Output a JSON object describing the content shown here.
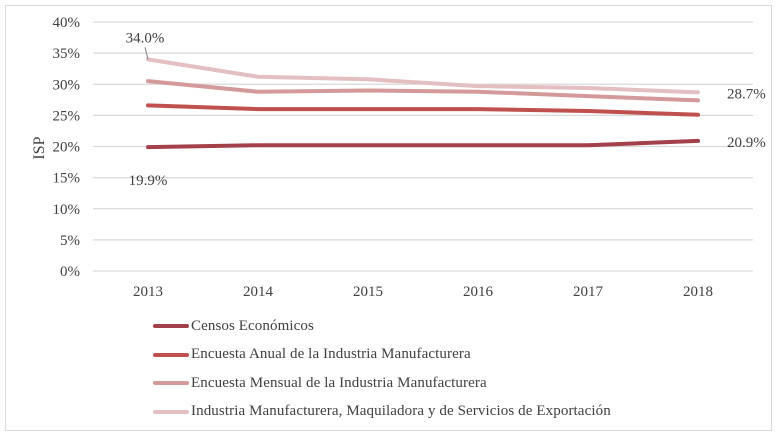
{
  "chart_data": {
    "type": "line",
    "title": "",
    "xlabel": "",
    "ylabel": "ISP",
    "categories": [
      "2013",
      "2014",
      "2015",
      "2016",
      "2017",
      "2018"
    ],
    "ylim": [
      0,
      40
    ],
    "yticks": [
      0,
      5,
      10,
      15,
      20,
      25,
      30,
      35,
      40
    ],
    "ytick_labels": [
      "0%",
      "5%",
      "10%",
      "15%",
      "20%",
      "25%",
      "30%",
      "35%",
      "40%"
    ],
    "grid": true,
    "legend_position": "bottom",
    "series": [
      {
        "name": "Censos Económicos",
        "color": "#a3404a",
        "values": [
          19.9,
          20.2,
          20.2,
          20.2,
          20.2,
          20.9
        ]
      },
      {
        "name": "Encuesta Anual de la Industria Manufacturera",
        "color": "#c0504d",
        "values": [
          26.6,
          26.0,
          26.0,
          26.0,
          25.7,
          25.1
        ]
      },
      {
        "name": "Encuesta Mensual de la Industria Manufacturera",
        "color": "#d49a9a",
        "values": [
          30.5,
          28.8,
          29.0,
          28.8,
          28.1,
          27.4
        ]
      },
      {
        "name": "Industria Manufacturera, Maquiladora y de Servicios de Exportación",
        "color": "#e4bfc1",
        "values": [
          34.0,
          31.2,
          30.8,
          29.7,
          29.4,
          28.7
        ]
      }
    ],
    "annotations": [
      {
        "series": 3,
        "category": "2013",
        "text": "34.0%"
      },
      {
        "series": 3,
        "category": "2018",
        "text": "28.7%"
      },
      {
        "series": 0,
        "category": "2013",
        "text": "19.9%"
      },
      {
        "series": 0,
        "category": "2018",
        "text": "20.9%"
      }
    ]
  }
}
